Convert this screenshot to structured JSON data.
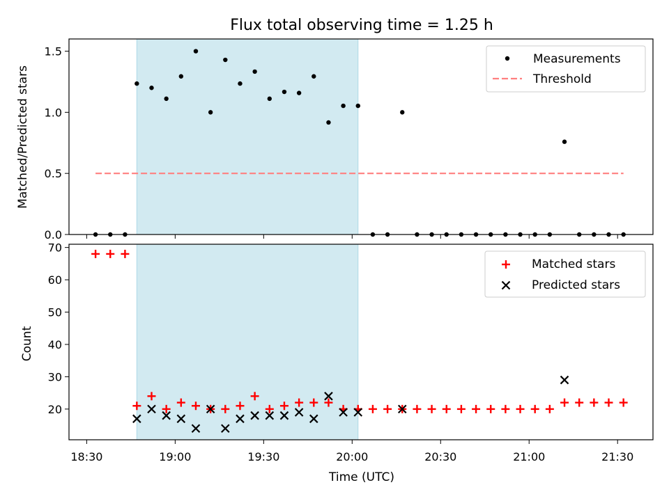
{
  "title": "Flux total observing time = 1.25 h",
  "chart_data": [
    {
      "type": "scatter",
      "panel": "top",
      "title": "Flux total observing time = 1.25 h",
      "xlabel": "",
      "ylabel": "Matched/Predicted stars",
      "xlim": [
        "18:24",
        "21:42"
      ],
      "ylim": [
        0,
        1.6
      ],
      "yticks": [
        0.0,
        0.5,
        1.0,
        1.5
      ],
      "ytick_labels": [
        "0.0",
        "0.5",
        "1.0",
        "1.5"
      ],
      "highlight_span": [
        "18:47",
        "20:02"
      ],
      "legend_position": "top-right",
      "series": [
        {
          "name": "Measurements",
          "marker": "dot",
          "color": "#000000",
          "x": [
            "18:33",
            "18:38",
            "18:43",
            "18:47",
            "18:52",
            "18:57",
            "19:02",
            "19:07",
            "19:12",
            "19:17",
            "19:22",
            "19:27",
            "19:32",
            "19:37",
            "19:42",
            "19:47",
            "19:52",
            "19:57",
            "20:02",
            "20:07",
            "20:12",
            "20:17",
            "20:22",
            "20:27",
            "20:32",
            "20:37",
            "20:42",
            "20:47",
            "20:52",
            "20:57",
            "21:02",
            "21:07",
            "21:12",
            "21:17",
            "21:22",
            "21:27",
            "21:32"
          ],
          "y": [
            0,
            0,
            0,
            1.235,
            1.2,
            1.111,
            1.294,
            1.5,
            1.0,
            1.429,
            1.235,
            1.333,
            1.111,
            1.167,
            1.158,
            1.294,
            0.917,
            1.053,
            1.053,
            0,
            0,
            1.0,
            0,
            0,
            0,
            0,
            0,
            0,
            0,
            0,
            0,
            0,
            0.759,
            0,
            0,
            0,
            0
          ]
        },
        {
          "name": "Threshold",
          "marker": "dashed-line",
          "color": "#ff7f7f",
          "x": [
            "18:33",
            "21:32"
          ],
          "y": [
            0.5,
            0.5
          ]
        }
      ]
    },
    {
      "type": "scatter",
      "panel": "bottom",
      "xlabel": "Time (UTC)",
      "ylabel": "Count",
      "xlim": [
        "18:24",
        "21:42"
      ],
      "ylim": [
        10.5,
        71
      ],
      "yticks": [
        20,
        30,
        40,
        50,
        60,
        70
      ],
      "xticks": [
        "18:30",
        "19:00",
        "19:30",
        "20:00",
        "20:30",
        "21:00",
        "21:30"
      ],
      "highlight_span": [
        "18:47",
        "20:02"
      ],
      "legend_position": "top-right",
      "series": [
        {
          "name": "Matched stars",
          "marker": "plus",
          "color": "#ff0000",
          "x": [
            "18:33",
            "18:38",
            "18:43",
            "18:47",
            "18:52",
            "18:57",
            "19:02",
            "19:07",
            "19:12",
            "19:17",
            "19:22",
            "19:27",
            "19:32",
            "19:37",
            "19:42",
            "19:47",
            "19:52",
            "19:57",
            "20:02",
            "20:07",
            "20:12",
            "20:17",
            "20:22",
            "20:27",
            "20:32",
            "20:37",
            "20:42",
            "20:47",
            "20:52",
            "20:57",
            "21:02",
            "21:07",
            "21:12",
            "21:17",
            "21:22",
            "21:27",
            "21:32"
          ],
          "y": [
            68,
            68,
            68,
            21,
            24,
            20,
            22,
            21,
            20,
            20,
            21,
            24,
            20,
            21,
            22,
            22,
            22,
            20,
            20,
            20,
            20,
            20,
            20,
            20,
            20,
            20,
            20,
            20,
            20,
            20,
            20,
            20,
            22,
            22,
            22,
            22,
            22
          ]
        },
        {
          "name": "Predicted stars",
          "marker": "x",
          "color": "#000000",
          "x": [
            "18:47",
            "18:52",
            "18:57",
            "19:02",
            "19:07",
            "19:12",
            "19:17",
            "19:22",
            "19:27",
            "19:32",
            "19:37",
            "19:42",
            "19:47",
            "19:52",
            "19:57",
            "20:02",
            "20:17",
            "21:12"
          ],
          "y": [
            17,
            20,
            18,
            17,
            14,
            20,
            14,
            17,
            18,
            18,
            18,
            19,
            17,
            24,
            19,
            19,
            20,
            29
          ]
        }
      ]
    }
  ],
  "colors": {
    "highlight": "#add8e6",
    "matched": "#ff0000",
    "predicted": "#000000",
    "threshold": "#ff7f7f"
  }
}
